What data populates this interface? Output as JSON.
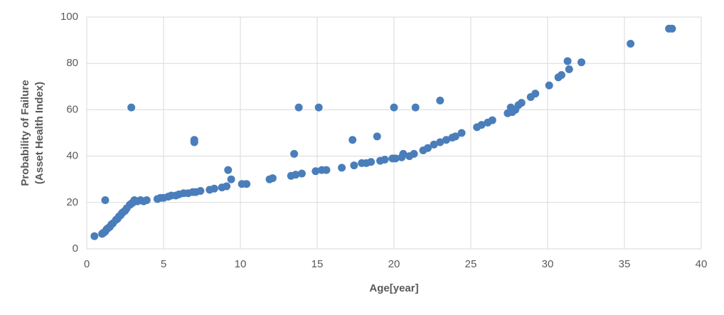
{
  "chart_data": {
    "type": "scatter",
    "x_label": "Age[year]",
    "y_label": [
      "Probability of Failure",
      "(Asset Health Index)"
    ],
    "color": "#4a7ebb",
    "grid": true,
    "xlim": [
      0,
      40
    ],
    "xticks": [
      0,
      5,
      10,
      15,
      20,
      25,
      30,
      35,
      40
    ],
    "ylim": [
      0,
      100
    ],
    "yticks": [
      0,
      20,
      40,
      60,
      80,
      100
    ],
    "x": [
      0.5,
      1.0,
      1.1,
      1.2,
      1.3,
      1.4,
      1.5,
      1.6,
      1.7,
      1.9,
      2.0,
      2.1,
      2.2,
      2.3,
      2.4,
      2.5,
      2.6,
      2.8,
      2.9,
      3.0,
      3.1,
      3.3,
      3.5,
      3.7,
      3.9,
      4.6,
      4.8,
      5.0,
      5.3,
      5.5,
      5.8,
      6.0,
      6.3,
      6.6,
      6.9,
      7.1,
      7.4,
      8.0,
      8.3,
      8.8,
      9.1,
      10.1,
      10.4,
      11.9,
      12.1,
      13.3,
      13.6,
      14.0,
      14.9,
      15.3,
      15.6,
      16.6,
      17.4,
      17.9,
      18.2,
      18.5,
      19.1,
      19.4,
      19.9,
      20.1,
      20.5,
      21.0,
      21.3,
      21.9,
      22.2,
      22.6,
      23.0,
      23.4,
      23.8,
      24.0,
      24.4,
      25.4,
      25.7,
      26.1,
      26.4,
      27.4,
      27.7,
      27.9,
      28.1,
      28.3,
      28.9,
      29.2,
      30.1,
      30.7,
      30.9,
      31.4,
      32.2,
      35.4,
      37.9,
      38.1,
      1.2,
      2.9,
      7.0,
      7.0,
      9.2,
      9.4,
      13.5,
      13.8,
      15.1,
      17.3,
      18.9,
      20.0,
      21.4,
      23.0,
      27.6,
      31.3,
      20.6
    ],
    "values": [
      5.5,
      6.5,
      7,
      7.5,
      8.5,
      9,
      9.5,
      10.5,
      11,
      12.5,
      13,
      14,
      14.5,
      15.5,
      16,
      16.5,
      17.5,
      19,
      19.5,
      20,
      21,
      20.5,
      21,
      20.5,
      21,
      21.5,
      22,
      22,
      22.5,
      23,
      23,
      23.5,
      24,
      24,
      24.5,
      24.5,
      25,
      25.5,
      26,
      26.5,
      27,
      28,
      28,
      30,
      30.5,
      31.5,
      32,
      32.5,
      33.5,
      34,
      34,
      35,
      36,
      37,
      37,
      37.5,
      38,
      38.5,
      39,
      39,
      39.5,
      40,
      41,
      42.5,
      43.5,
      45,
      46,
      47,
      48,
      48.5,
      50,
      52.5,
      53.5,
      54.5,
      55.5,
      58.5,
      59,
      60,
      62,
      63,
      65.5,
      67,
      70.5,
      74,
      75,
      77.5,
      80.5,
      88.5,
      95,
      95,
      21,
      61,
      47,
      46,
      34,
      30,
      41,
      61,
      61,
      47,
      48.5,
      61,
      61,
      64,
      61,
      81,
      41
    ]
  }
}
